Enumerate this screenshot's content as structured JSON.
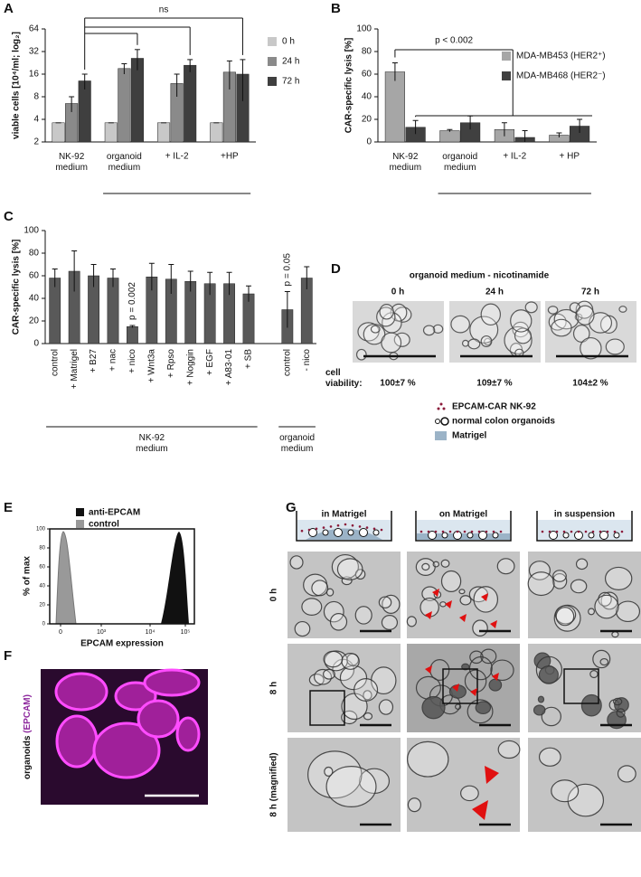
{
  "panel_letters": [
    "A",
    "B",
    "C",
    "D",
    "E",
    "F",
    "G"
  ],
  "chart_data": [
    {
      "type": "bar",
      "y_label": "viable cells [10⁴/ml; log₂]",
      "yscale": "log2",
      "categories": [
        "NK-92\nmedium",
        "organoid\nmedium",
        "+ IL-2",
        "+HP"
      ],
      "series": [
        {
          "name": "0 h",
          "color": "#c8c8c8",
          "values": [
            3.6,
            3.6,
            3.6,
            3.6
          ],
          "errors": [
            0,
            0,
            0,
            0
          ]
        },
        {
          "name": "24 h",
          "color": "#8a8a8a",
          "values": [
            6.5,
            19,
            12,
            17
          ],
          "errors": [
            1.5,
            3,
            4,
            7
          ]
        },
        {
          "name": "72 h",
          "color": "#3f3f3f",
          "values": [
            13,
            26,
            21,
            16
          ],
          "errors": [
            3,
            8,
            4,
            9
          ]
        }
      ],
      "ylim": [
        2,
        64
      ],
      "yticks": [
        2,
        4,
        8,
        16,
        32,
        64
      ],
      "annotations": [
        "ns"
      ]
    },
    {
      "type": "bar",
      "y_label": "CAR-specific lysis [%]",
      "categories": [
        "NK-92\nmedium",
        "organoid\nmedium",
        "+ IL-2",
        "+ HP"
      ],
      "series": [
        {
          "name": "MDA-MB453 (HER2⁺)",
          "color": "#a6a6a6",
          "values": [
            62,
            10,
            11,
            6
          ],
          "errors": [
            8,
            1,
            6,
            2
          ]
        },
        {
          "name": "MDA-MB468 (HER2⁻)",
          "color": "#404040",
          "values": [
            13,
            17,
            4,
            14
          ],
          "errors": [
            6,
            6,
            6,
            6
          ]
        }
      ],
      "ylim": [
        0,
        100
      ],
      "yticks": [
        0,
        20,
        40,
        60,
        80,
        100
      ],
      "annotations": [
        "p < 0.002"
      ]
    },
    {
      "type": "bar",
      "y_label": "CAR-specific lysis [%]",
      "color": "#595959",
      "categories": [
        "control",
        "+ Matrigel",
        "+ B27",
        "+ nac",
        "+ nico",
        "+ Wnt3a",
        "+ Rpso",
        "+ Noggin",
        "+ EGF",
        "+ A83-01",
        "+ SB",
        null,
        "control",
        "- nico"
      ],
      "values": [
        58,
        64,
        60,
        58,
        15,
        59,
        57,
        55,
        53,
        53,
        44,
        null,
        30,
        58
      ],
      "errors": [
        8,
        18,
        10,
        8,
        1,
        12,
        13,
        9,
        10,
        10,
        7,
        null,
        16,
        10
      ],
      "ylim": [
        0,
        100
      ],
      "yticks": [
        0,
        20,
        40,
        60,
        80,
        100
      ],
      "annotations": [
        "p = 0.002",
        "p = 0.05"
      ],
      "groups": [
        "NK-92\nmedium",
        "organoid\nmedium"
      ]
    }
  ],
  "panel_d": {
    "title": "organoid medium - nicotinamide",
    "columns": [
      "0 h",
      "24 h",
      "72 h"
    ],
    "row_label": "cell\nviability:",
    "viability": [
      "100±7 %",
      "109±7 %",
      "104±2 %"
    ]
  },
  "legend_g": [
    "EPCAM-CAR NK-92",
    "normal colon organoids",
    "Matrigel"
  ],
  "panel_e": {
    "legend": [
      "anti-EPCAM",
      "control"
    ],
    "y_label": "% of max",
    "yticks": [
      "0",
      "20",
      "40",
      "60",
      "80",
      "100"
    ],
    "xticks": [
      "0",
      "10³",
      "10⁴",
      "10⁵"
    ],
    "x_label": "EPCAM expression"
  },
  "panel_f": {
    "label": "organoids",
    "label_marker": "(EPCAM)"
  },
  "panel_g": {
    "conditions": [
      "in Matrigel",
      "on Matrigel",
      "in suspension"
    ],
    "rows": [
      "0 h",
      "8 h",
      "8 h (magnified)"
    ]
  }
}
